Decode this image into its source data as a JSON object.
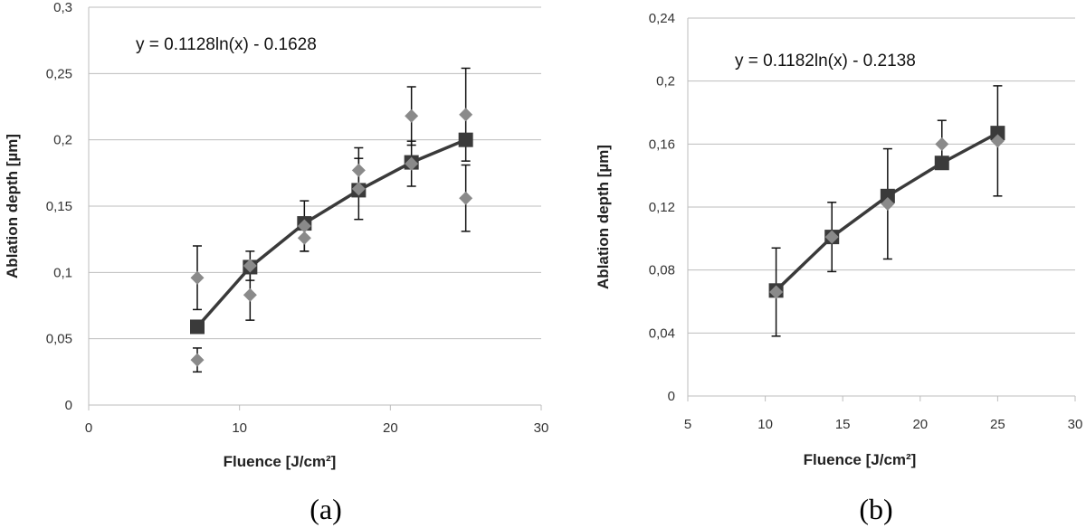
{
  "chart_data": [
    {
      "type": "scatter",
      "caption": "(a)",
      "equation": "y = 0.1128ln(x) - 0.1628",
      "xlabel": "Fluence  [J/cm²]",
      "ylabel": "Ablation depth [µm]",
      "xlim": [
        0,
        30
      ],
      "ylim": [
        0,
        0.3
      ],
      "xticks": [
        0,
        10,
        20,
        30
      ],
      "xtick_labels": [
        "0",
        "10",
        "20",
        "30"
      ],
      "yticks": [
        0,
        0.05,
        0.1,
        0.15,
        0.2,
        0.25,
        0.3
      ],
      "ytick_labels": [
        "0",
        "0,05",
        "0,1",
        "0,15",
        "0,2",
        "0,25",
        "0,3"
      ],
      "grid": "horizontal",
      "colors": {
        "mean": "#3a3a3a",
        "measurement": "#8a8a8a",
        "errorbar": "#111111"
      },
      "mean_series": {
        "x": [
          7.2,
          10.7,
          14.3,
          17.9,
          21.4,
          25.0
        ],
        "y": [
          0.059,
          0.104,
          0.137,
          0.162,
          0.183,
          0.2
        ]
      },
      "measurement_series": {
        "points": [
          {
            "x": 7.2,
            "y": 0.096,
            "err": 0.024
          },
          {
            "x": 7.2,
            "y": 0.034,
            "err": 0.009
          },
          {
            "x": 10.7,
            "y": 0.105,
            "err": 0.011
          },
          {
            "x": 10.7,
            "y": 0.083,
            "err": 0.019
          },
          {
            "x": 14.3,
            "y": 0.135,
            "err": 0.019
          },
          {
            "x": 14.3,
            "y": 0.126,
            "err": 0.01
          },
          {
            "x": 17.9,
            "y": 0.177,
            "err": 0.017
          },
          {
            "x": 17.9,
            "y": 0.163,
            "err": 0.023
          },
          {
            "x": 21.4,
            "y": 0.218,
            "err": 0.022
          },
          {
            "x": 21.4,
            "y": 0.182,
            "err": 0.017
          },
          {
            "x": 25.0,
            "y": 0.219,
            "err": 0.035
          },
          {
            "x": 25.0,
            "y": 0.156,
            "err": 0.025
          }
        ]
      }
    },
    {
      "type": "scatter",
      "caption": "(b)",
      "equation": "y = 0.1182ln(x) - 0.2138",
      "xlabel": "Fluence [J/cm²]",
      "ylabel": "Ablation depth [µm]",
      "xlim": [
        5,
        30
      ],
      "ylim": [
        0,
        0.24
      ],
      "xticks": [
        5,
        10,
        15,
        20,
        25,
        30
      ],
      "xtick_labels": [
        "5",
        "10",
        "15",
        "20",
        "25",
        "30"
      ],
      "yticks": [
        0,
        0.04,
        0.08,
        0.12,
        0.16,
        0.2,
        0.24
      ],
      "ytick_labels": [
        "0",
        "0,04",
        "0,08",
        "0,12",
        "0,16",
        "0,2",
        "0,24"
      ],
      "grid": "horizontal",
      "colors": {
        "mean": "#3a3a3a",
        "measurement": "#8a8a8a",
        "errorbar": "#111111"
      },
      "mean_series": {
        "x": [
          10.7,
          14.3,
          17.9,
          21.4,
          25.0
        ],
        "y": [
          0.067,
          0.101,
          0.127,
          0.148,
          0.167
        ]
      },
      "measurement_series": {
        "points": [
          {
            "x": 10.7,
            "y": 0.066,
            "err": 0.028
          },
          {
            "x": 14.3,
            "y": 0.101,
            "err": 0.022
          },
          {
            "x": 17.9,
            "y": 0.122,
            "err": 0.035
          },
          {
            "x": 21.4,
            "y": 0.16,
            "err": 0.015
          },
          {
            "x": 25.0,
            "y": 0.162,
            "err": 0.035
          }
        ]
      }
    }
  ]
}
